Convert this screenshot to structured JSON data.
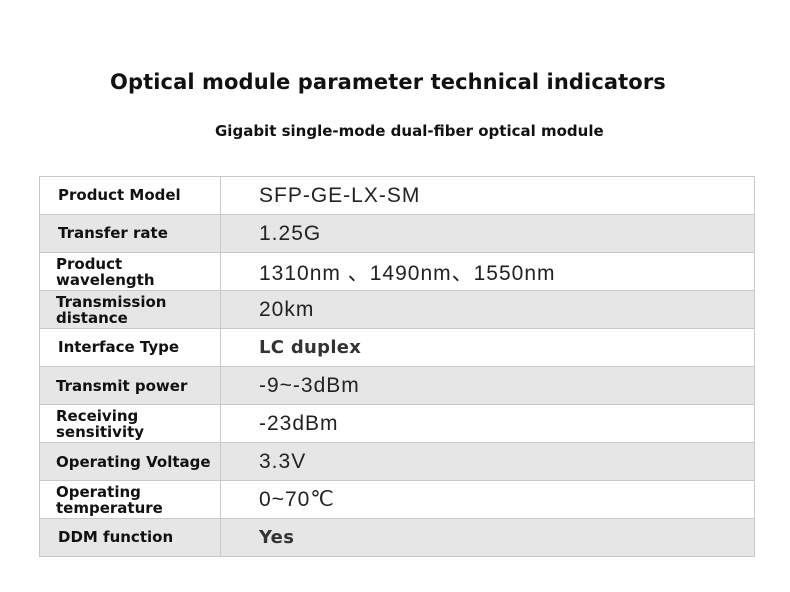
{
  "title": "Optical module parameter technical indicators",
  "subtitle": "Gigabit single-mode dual-fiber optical module",
  "rows": [
    {
      "label": "Product Model",
      "value": "SFP-GE-LX-SM"
    },
    {
      "label": "Transfer rate",
      "value": "1.25G"
    },
    {
      "label": "Product wavelength",
      "value": "1310nm 、1490nm、1550nm"
    },
    {
      "label": "Transmission distance",
      "value": "20km"
    },
    {
      "label": "Interface Type",
      "value": "LC duplex"
    },
    {
      "label": "Transmit power",
      "value": "-9~-3dBm"
    },
    {
      "label": "Receiving sensitivity",
      "value": "-23dBm"
    },
    {
      "label": "Operating Voltage",
      "value": "3.3V"
    },
    {
      "label": "Operating temperature",
      "value": "0~70℃"
    },
    {
      "label": "DDM function",
      "value": "Yes"
    }
  ]
}
